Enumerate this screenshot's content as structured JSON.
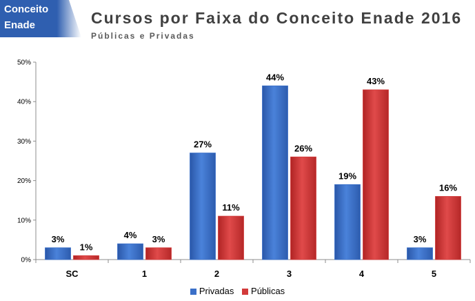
{
  "header": {
    "tag_lines": [
      "Conceito",
      "Enade"
    ],
    "title": "Cursos por Faixa do Conceito Enade 2016",
    "subtitle": "Públicas e Privadas"
  },
  "colors": {
    "privadas": "#3a6fc8",
    "publicas": "#d23a3a",
    "tag": "#2f5fb0"
  },
  "chart_data": {
    "type": "bar",
    "categories": [
      "SC",
      "1",
      "2",
      "3",
      "4",
      "5"
    ],
    "series": [
      {
        "name": "Privadas",
        "values": [
          3,
          4,
          27,
          44,
          19,
          3
        ],
        "labels": [
          "3%",
          "4%",
          "27%",
          "44%",
          "19%",
          "3%"
        ]
      },
      {
        "name": "Públicas",
        "values": [
          1,
          3,
          11,
          26,
          43,
          16
        ],
        "labels": [
          "1%",
          "3%",
          "11%",
          "26%",
          "43%",
          "16%"
        ]
      }
    ],
    "ylim": [
      0,
      50
    ],
    "yticks": [
      0,
      10,
      20,
      30,
      40,
      50
    ],
    "ytick_labels": [
      "0%",
      "10%",
      "20%",
      "30%",
      "40%",
      "50%"
    ],
    "grid": false,
    "legend_position": "bottom"
  }
}
